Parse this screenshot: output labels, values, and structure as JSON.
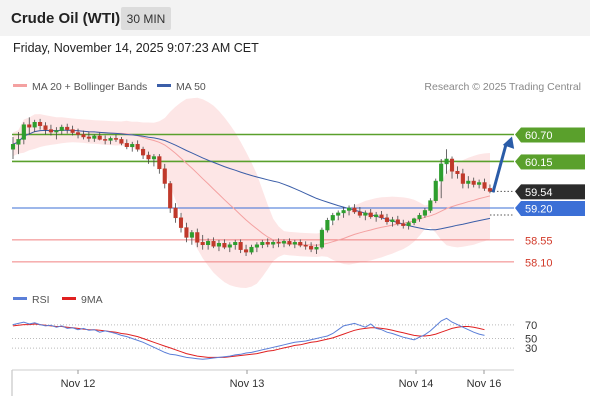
{
  "header": {
    "title": "Crude Oil (WTI)",
    "timeframe": "30 MIN"
  },
  "subheader": {
    "datetime": "Friday, November 14, 2025 9:07:23 AM CET"
  },
  "colors": {
    "ma20": "#f4a1a1",
    "ma50": "#3b5ea8",
    "bollinger_fill": "#fde2e2",
    "resistance": "#5aa02c",
    "support": "#f08080",
    "pivot": "#3b6fd6",
    "arrow": "#2a5ca8",
    "rsi": "#5b7fd8",
    "rsi_ma": "#e02020",
    "candle_up": "#2e9e2e",
    "candle_down": "#c0392b"
  },
  "chart_data": [
    {
      "type": "candlestick",
      "legend": [
        {
          "label": "MA 20 + Bollinger Bands",
          "color": "#f4a1a1"
        },
        {
          "label": "MA 50",
          "color": "#3b5ea8"
        }
      ],
      "watermark": "Research © 2025 Trading Central",
      "x_ticks": [
        "Nov 12",
        "Nov 13",
        "Nov 14",
        "Nov 16"
      ],
      "last_price": 59.54,
      "levels": [
        {
          "value": 60.7,
          "label": "60.70",
          "type": "resistance"
        },
        {
          "value": 60.15,
          "label": "60.15",
          "type": "resistance"
        },
        {
          "value": 59.2,
          "label": "59.20",
          "type": "pivot"
        },
        {
          "value": 58.55,
          "label": "58.55",
          "type": "support"
        },
        {
          "value": 58.1,
          "label": "58.10",
          "type": "support"
        }
      ],
      "ohlc": [
        [
          60.4,
          60.65,
          60.2,
          60.5
        ],
        [
          60.5,
          60.75,
          60.3,
          60.6
        ],
        [
          60.6,
          60.95,
          60.5,
          60.9
        ],
        [
          60.9,
          61.05,
          60.7,
          60.85
        ],
        [
          60.85,
          61.0,
          60.75,
          60.95
        ],
        [
          60.95,
          61.02,
          60.8,
          60.88
        ],
        [
          60.88,
          60.95,
          60.7,
          60.8
        ],
        [
          60.8,
          60.9,
          60.68,
          60.75
        ],
        [
          60.75,
          60.85,
          60.6,
          60.78
        ],
        [
          60.78,
          60.9,
          60.7,
          60.85
        ],
        [
          60.85,
          60.92,
          60.72,
          60.8
        ],
        [
          60.8,
          60.88,
          60.68,
          60.74
        ],
        [
          60.74,
          60.82,
          60.62,
          60.7
        ],
        [
          60.7,
          60.78,
          60.6,
          60.65
        ],
        [
          60.65,
          60.75,
          60.55,
          60.62
        ],
        [
          60.62,
          60.7,
          60.55,
          60.67
        ],
        [
          60.67,
          60.74,
          60.58,
          60.6
        ],
        [
          60.6,
          60.68,
          60.5,
          60.58
        ],
        [
          60.58,
          60.66,
          60.5,
          60.62
        ],
        [
          60.62,
          60.7,
          60.55,
          60.6
        ],
        [
          60.6,
          60.65,
          60.48,
          60.52
        ],
        [
          60.52,
          60.6,
          60.4,
          60.45
        ],
        [
          60.45,
          60.55,
          60.35,
          60.5
        ],
        [
          60.5,
          60.58,
          60.35,
          60.4
        ],
        [
          60.4,
          60.45,
          60.2,
          60.28
        ],
        [
          60.28,
          60.35,
          60.1,
          60.2
        ],
        [
          60.2,
          60.3,
          60.05,
          60.25
        ],
        [
          60.25,
          60.3,
          59.9,
          60.0
        ],
        [
          60.0,
          60.1,
          59.6,
          59.7
        ],
        [
          59.7,
          59.75,
          59.1,
          59.2
        ],
        [
          59.2,
          59.3,
          58.9,
          59.0
        ],
        [
          59.0,
          59.1,
          58.7,
          58.8
        ],
        [
          58.8,
          58.9,
          58.5,
          58.6
        ],
        [
          58.6,
          58.75,
          58.45,
          58.7
        ],
        [
          58.7,
          58.78,
          58.4,
          58.5
        ],
        [
          58.5,
          58.65,
          58.35,
          58.45
        ],
        [
          58.45,
          58.58,
          58.35,
          58.52
        ],
        [
          58.52,
          58.6,
          58.38,
          58.42
        ],
        [
          58.42,
          58.55,
          58.32,
          58.48
        ],
        [
          58.48,
          58.56,
          58.36,
          58.4
        ],
        [
          58.4,
          58.5,
          58.3,
          58.45
        ],
        [
          58.45,
          58.55,
          58.35,
          58.5
        ],
        [
          58.5,
          58.56,
          58.28,
          58.35
        ],
        [
          58.35,
          58.45,
          58.22,
          58.3
        ],
        [
          58.3,
          58.45,
          58.25,
          58.4
        ],
        [
          58.4,
          58.5,
          58.3,
          58.45
        ],
        [
          58.45,
          58.55,
          58.38,
          58.5
        ],
        [
          58.5,
          58.58,
          58.4,
          58.46
        ],
        [
          58.46,
          58.55,
          58.38,
          58.5
        ],
        [
          58.5,
          58.58,
          58.4,
          58.48
        ],
        [
          58.48,
          58.56,
          58.4,
          58.52
        ],
        [
          58.52,
          58.58,
          58.42,
          58.46
        ],
        [
          58.46,
          58.55,
          58.38,
          58.5
        ],
        [
          58.5,
          58.56,
          58.4,
          58.44
        ],
        [
          58.44,
          58.52,
          58.35,
          58.42
        ],
        [
          58.42,
          58.5,
          58.3,
          58.36
        ],
        [
          58.36,
          58.46,
          58.26,
          58.4
        ],
        [
          58.4,
          58.8,
          58.36,
          58.75
        ],
        [
          58.75,
          59.0,
          58.7,
          58.95
        ],
        [
          58.95,
          59.1,
          58.85,
          59.05
        ],
        [
          59.05,
          59.15,
          58.95,
          59.1
        ],
        [
          59.1,
          59.22,
          59.0,
          59.15
        ],
        [
          59.15,
          59.25,
          59.05,
          59.2
        ],
        [
          59.2,
          59.28,
          59.08,
          59.12
        ],
        [
          59.12,
          59.22,
          59.0,
          59.05
        ],
        [
          59.05,
          59.15,
          58.95,
          59.1
        ],
        [
          59.1,
          59.18,
          58.98,
          59.02
        ],
        [
          59.02,
          59.12,
          58.92,
          59.06
        ],
        [
          59.06,
          59.14,
          58.96,
          59.0
        ],
        [
          59.0,
          59.08,
          58.86,
          58.92
        ],
        [
          58.92,
          59.02,
          58.82,
          58.96
        ],
        [
          58.96,
          59.04,
          58.84,
          58.88
        ],
        [
          58.88,
          58.96,
          58.78,
          58.84
        ],
        [
          58.84,
          58.94,
          58.76,
          58.9
        ],
        [
          58.9,
          59.0,
          58.85,
          58.98
        ],
        [
          58.98,
          59.1,
          58.92,
          59.05
        ],
        [
          59.05,
          59.2,
          59.0,
          59.15
        ],
        [
          59.15,
          59.4,
          59.1,
          59.35
        ],
        [
          59.35,
          59.8,
          59.3,
          59.75
        ],
        [
          59.75,
          60.2,
          59.4,
          60.1
        ],
        [
          60.1,
          60.4,
          59.9,
          60.2
        ],
        [
          60.2,
          60.25,
          59.8,
          59.95
        ],
        [
          59.95,
          60.05,
          59.8,
          59.9
        ],
        [
          59.9,
          60.0,
          59.6,
          59.7
        ],
        [
          59.7,
          59.85,
          59.6,
          59.75
        ],
        [
          59.75,
          59.82,
          59.62,
          59.68
        ],
        [
          59.68,
          59.78,
          59.6,
          59.72
        ],
        [
          59.72,
          59.8,
          59.55,
          59.6
        ],
        [
          59.6,
          59.68,
          59.5,
          59.54
        ]
      ]
    },
    {
      "type": "line",
      "legend": [
        {
          "label": "RSI",
          "color": "#5b7fd8"
        },
        {
          "label": "9MA",
          "color": "#e02020"
        }
      ],
      "y_ticks": [
        70,
        50,
        30
      ],
      "ylim": [
        0,
        100
      ],
      "series": [
        {
          "name": "RSI",
          "values": [
            72,
            74,
            76,
            73,
            75,
            72,
            70,
            71,
            68,
            70,
            66,
            67,
            64,
            66,
            63,
            64,
            60,
            62,
            60,
            58,
            55,
            53,
            50,
            47,
            44,
            40,
            36,
            32,
            28,
            25,
            24,
            22,
            20,
            19,
            18,
            17,
            18,
            19,
            20,
            21,
            22,
            24,
            25,
            27,
            28,
            30,
            32,
            34,
            36,
            38,
            40,
            42,
            44,
            45,
            46,
            48,
            50,
            52,
            54,
            58,
            64,
            70,
            72,
            74,
            71,
            68,
            73,
            66,
            64,
            60,
            58,
            55,
            52,
            50,
            48,
            52,
            56,
            62,
            70,
            78,
            82,
            76,
            72,
            68,
            64,
            60,
            57,
            55
          ]
        },
        {
          "name": "9MA",
          "values": [
            70,
            71,
            72,
            72,
            73,
            72,
            71,
            70,
            69,
            69,
            68,
            67,
            66,
            65,
            64,
            64,
            63,
            62,
            61,
            60,
            58,
            57,
            55,
            53,
            50,
            47,
            44,
            41,
            38,
            35,
            32,
            29,
            26,
            24,
            22,
            21,
            20,
            20,
            20,
            20,
            21,
            22,
            23,
            24,
            25,
            26,
            28,
            30,
            31,
            33,
            35,
            37,
            39,
            40,
            42,
            44,
            45,
            47,
            49,
            51,
            54,
            57,
            60,
            63,
            65,
            66,
            67,
            67,
            66,
            65,
            63,
            61,
            59,
            57,
            55,
            54,
            54,
            55,
            57,
            60,
            63,
            66,
            68,
            69,
            69,
            68,
            66,
            64
          ]
        }
      ]
    }
  ]
}
